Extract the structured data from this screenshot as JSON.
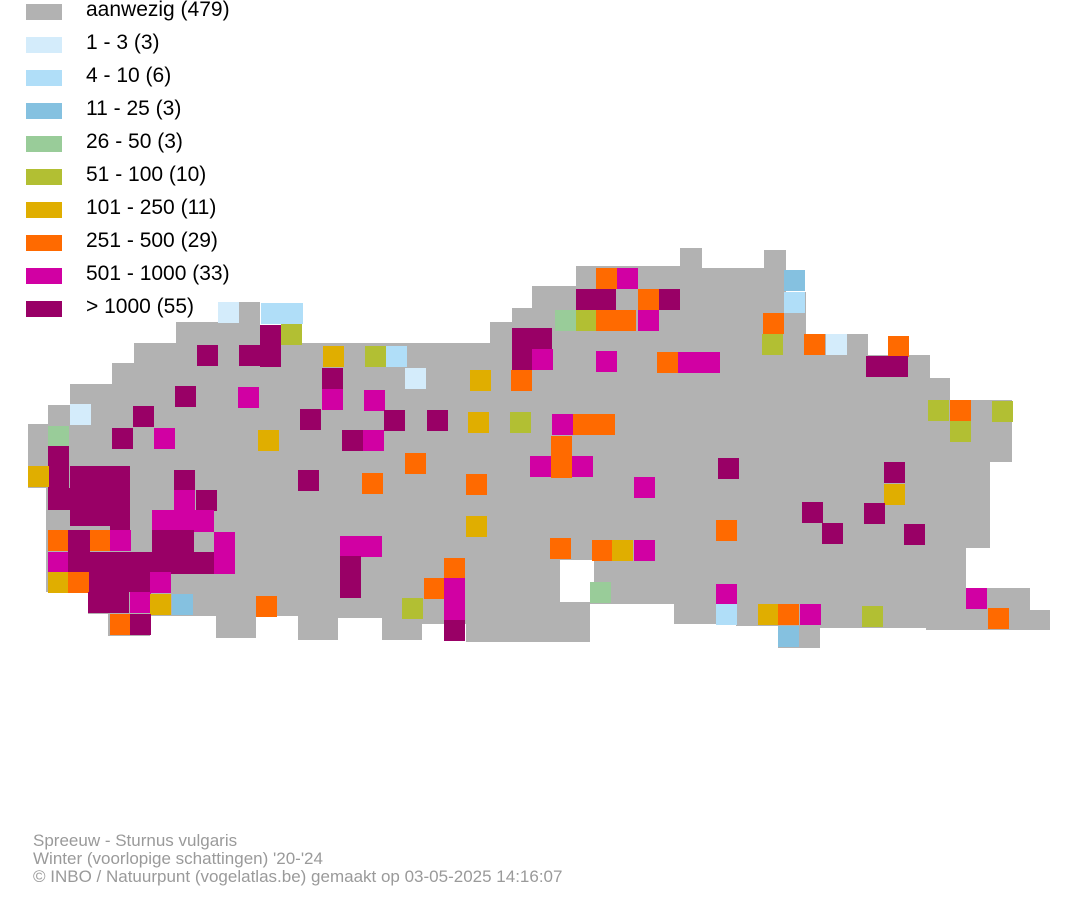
{
  "legend": {
    "items": [
      {
        "label": "aanwezig (479)",
        "color": "#b2b2b2"
      },
      {
        "label": "1 - 3 (3)",
        "color": "#d4ecfb"
      },
      {
        "label": "4 - 10 (6)",
        "color": "#b0def8"
      },
      {
        "label": "11 - 25 (3)",
        "color": "#85c1e0"
      },
      {
        "label": "26 - 50 (3)",
        "color": "#99cc99"
      },
      {
        "label": "51 - 100 (10)",
        "color": "#b2bf33"
      },
      {
        "label": "101 - 250 (11)",
        "color": "#e0ae00"
      },
      {
        "label": "251 - 500 (29)",
        "color": "#ff6a00"
      },
      {
        "label": "501 - 1000 (33)",
        "color": "#d100a3"
      },
      {
        "label": "> 1000 (55)",
        "color": "#990066"
      }
    ]
  },
  "credits": {
    "species": "Spreeuw - Sturnus vulgaris",
    "season": "Winter (voorlopige schattingen) '20-'24",
    "copyright": "© INBO / Natuurpunt (vogelatlas.be) gemaakt op 03-05-2025 14:16:07"
  }
}
